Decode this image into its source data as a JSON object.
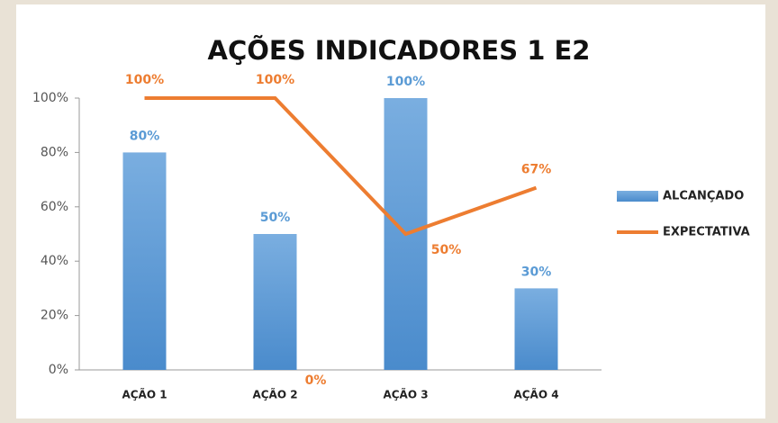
{
  "chart_data": {
    "type": "bar_line",
    "title": "AÇÕES INDICADORES 1 E2",
    "categories": [
      "AÇÃO 1",
      "AÇÃO 2",
      "AÇÃO 3",
      "AÇÃO 4"
    ],
    "series": [
      {
        "name": "ALCANÇADO",
        "type": "bar",
        "color": "#5b9bd5",
        "values": [
          80,
          50,
          100,
          30
        ],
        "value_labels": [
          "80%",
          "50%",
          "100%",
          "30%"
        ]
      },
      {
        "name": "EXPECTATIVA",
        "type": "line",
        "color": "#ed7d31",
        "values": [
          100,
          100,
          50,
          67
        ],
        "value_labels": [
          "100%",
          "100%",
          "50%",
          "67%"
        ]
      }
    ],
    "annotations": [
      "0%"
    ],
    "ylim": [
      0,
      100
    ],
    "yticks": [
      {
        "value": 0,
        "label": "0%"
      },
      {
        "value": 20,
        "label": "20%"
      },
      {
        "value": 40,
        "label": "40%"
      },
      {
        "value": 60,
        "label": "60%"
      },
      {
        "value": 80,
        "label": "80%"
      },
      {
        "value": 100,
        "label": "100%"
      }
    ],
    "legend": "right"
  }
}
